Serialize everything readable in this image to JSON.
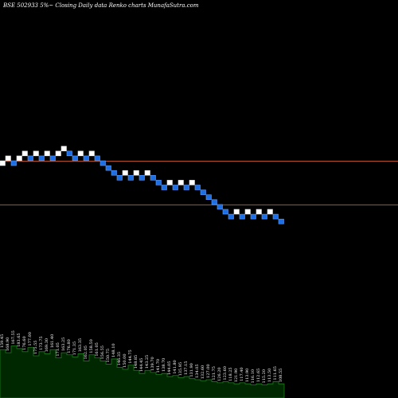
{
  "title": "BSE 502933 5%~  Closing Daily data  Renko  charts MunafaSutra.com",
  "colors": {
    "background": "#000000",
    "up_brick": "#ffffff",
    "down_brick": "#1e6fe6",
    "down_brick_border": "#5aa0ff",
    "reference_line": "#b4502a",
    "volume_fill": "#002800",
    "volume_stroke": "#1e7d1e",
    "label": "#ffffff"
  },
  "chart_data": {
    "type": "renko",
    "title": "BSE 502933 5%~  Closing Daily data  Renko  charts MunafaSutra.com",
    "brick_levels": [
      0,
      1,
      0,
      1,
      2,
      1,
      2,
      1,
      2,
      1,
      2,
      3,
      2,
      1,
      2,
      1,
      2,
      1,
      0,
      -1,
      -2,
      -3,
      -2,
      -3,
      -2,
      -3,
      -2,
      -3,
      -4,
      -5,
      -4,
      -5,
      -4,
      -5,
      -4,
      -5,
      -6,
      -7,
      -8,
      -9,
      -10,
      -11,
      -10,
      -11,
      -10,
      -11,
      -10,
      -11,
      -10,
      -11,
      -12
    ],
    "brick_directions": [
      "up",
      "up",
      "down",
      "up",
      "up",
      "down",
      "up",
      "down",
      "up",
      "down",
      "up",
      "up",
      "down",
      "down",
      "up",
      "down",
      "up",
      "down",
      "down",
      "down",
      "down",
      "down",
      "up",
      "down",
      "up",
      "down",
      "up",
      "down",
      "down",
      "down",
      "up",
      "down",
      "up",
      "down",
      "up",
      "down",
      "down",
      "down",
      "down",
      "down",
      "down",
      "down",
      "up",
      "down",
      "up",
      "down",
      "up",
      "down",
      "up",
      "down",
      "down"
    ],
    "reference_levels": [
      0.5,
      -8.5
    ],
    "volume_labels": [
      "159.45",
      "168.90",
      "167.55",
      "183.65",
      "176.60",
      "177.00",
      "175.55",
      "173.75",
      "169.30",
      "161.40",
      "171.05",
      "163.25",
      "176.80",
      "171.35",
      "163.35",
      "162.05",
      "158.50",
      "161.05",
      "156.55",
      "150.75",
      "148.10",
      "146.35",
      "150.00",
      "144.75",
      "148.85",
      "144.45",
      "143.25",
      "139.70",
      "141.70",
      "138.70",
      "144.05",
      "141.80",
      "135.95",
      "137.15",
      "131.90",
      "134.05",
      "132.60",
      "127.00",
      "121.75",
      "126.20",
      "123.60",
      "118.25",
      "121.90",
      "117.40",
      "113.90",
      "116.10",
      "112.65",
      "115.20",
      "113.50",
      "111.65",
      "108.55"
    ],
    "volume_values": [
      0.78,
      0.72,
      0.85,
      0.8,
      0.74,
      0.82,
      0.66,
      0.74,
      0.7,
      0.78,
      0.62,
      0.72,
      0.68,
      0.64,
      0.7,
      0.56,
      0.68,
      0.62,
      0.56,
      0.5,
      0.6,
      0.44,
      0.4,
      0.48,
      0.38,
      0.32,
      0.38,
      0.34,
      0.3,
      0.32,
      0.26,
      0.28,
      0.24,
      0.26,
      0.22,
      0.2,
      0.18,
      0.2,
      0.16,
      0.14,
      0.16,
      0.14,
      0.12,
      0.14,
      0.12,
      0.1,
      0.12,
      0.1,
      0.12,
      0.16,
      0.12
    ]
  }
}
